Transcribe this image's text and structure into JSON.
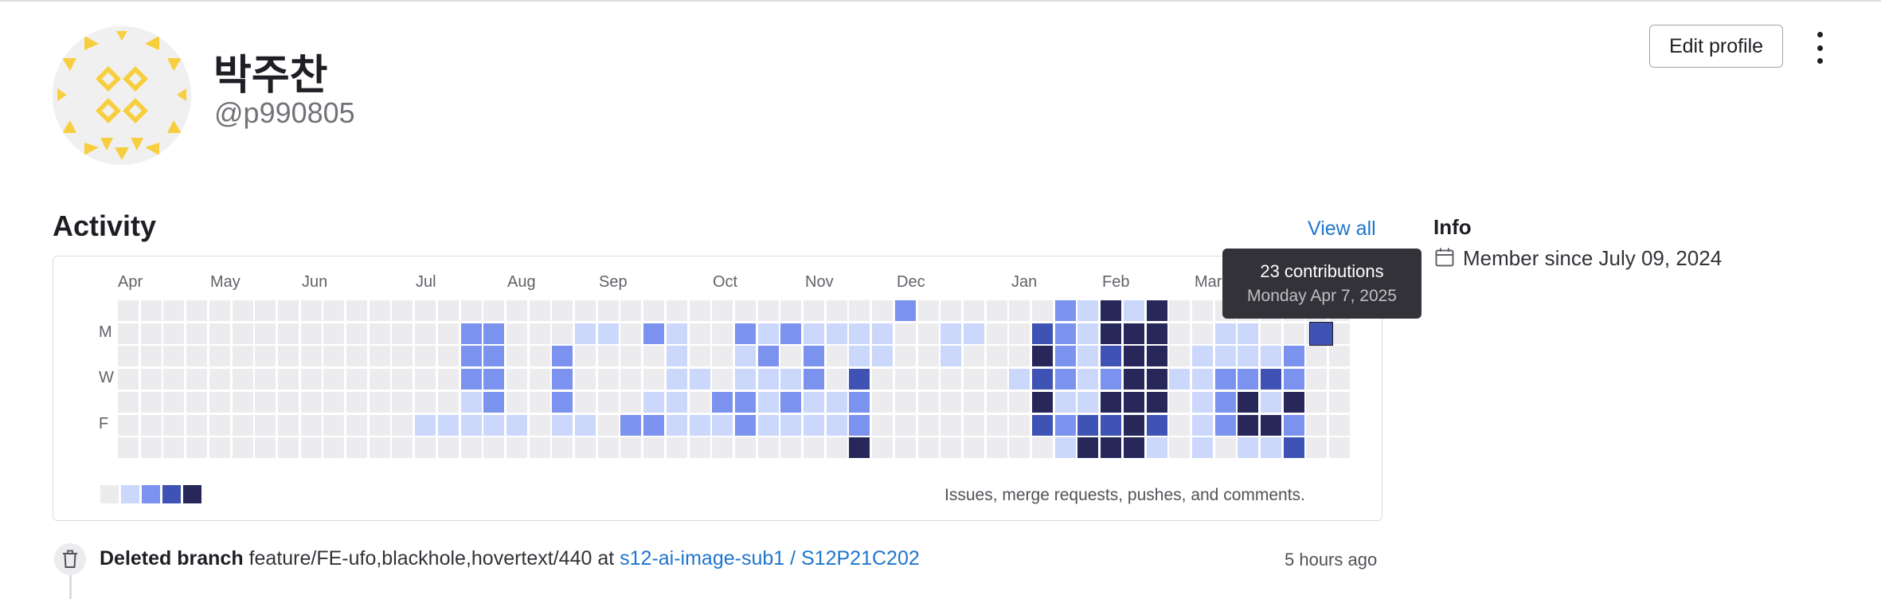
{
  "profile": {
    "display_name": "박주찬",
    "username": "@p990805",
    "edit_label": "Edit profile"
  },
  "activity": {
    "title": "Activity",
    "view_all": "View all",
    "months": [
      "Apr",
      "May",
      "Jun",
      "Jul",
      "Aug",
      "Sep",
      "Oct",
      "Nov",
      "Dec",
      "Jan",
      "Feb",
      "Mar"
    ],
    "day_labels": [
      "M",
      "W",
      "F"
    ],
    "legend_text": "Issues, merge requests, pushes, and comments.",
    "level_colors": [
      "#ececef",
      "#cbd8fc",
      "#7b92ef",
      "#3f53b4",
      "#272859"
    ],
    "tooltip": {
      "count": "23 contributions",
      "date": "Monday Apr 7, 2025"
    },
    "grid": [
      [
        0,
        0,
        0,
        0,
        0,
        0,
        0,
        0,
        0,
        0,
        0,
        0,
        0,
        0,
        0,
        0,
        0,
        0,
        0,
        0,
        0,
        0,
        0,
        0,
        0,
        0,
        0,
        0,
        0,
        0,
        0,
        0,
        0,
        0,
        0,
        0,
        0,
        0,
        0,
        0,
        0,
        0,
        0,
        0,
        0,
        0,
        0,
        0,
        0,
        0,
        0,
        0,
        0,
        0
      ],
      [
        0,
        0,
        0,
        0,
        0,
        0,
        0,
        0,
        0,
        0,
        0,
        0,
        0,
        0,
        0,
        0,
        0,
        0,
        0,
        0,
        0,
        0,
        0,
        0,
        0,
        0,
        0,
        0,
        0,
        0,
        0,
        0,
        0,
        0,
        0,
        0,
        0,
        0,
        0,
        0,
        0,
        0,
        0,
        0,
        0,
        0,
        0,
        0,
        0,
        0,
        0,
        0,
        0,
        0
      ],
      [
        0,
        0,
        0,
        0,
        0,
        0,
        0,
        0,
        0,
        0,
        0,
        0,
        0,
        0,
        0,
        0,
        0,
        0,
        0,
        0,
        0,
        0,
        0,
        0,
        0,
        0,
        0,
        0,
        0,
        0,
        0,
        0,
        0,
        0,
        0,
        0,
        0,
        0,
        0,
        0,
        0,
        0,
        0,
        0,
        0,
        0,
        0,
        0,
        0,
        0,
        0,
        0,
        0,
        0
      ],
      [
        0,
        0,
        0,
        0,
        0,
        0,
        0,
        0,
        0,
        0,
        0,
        0,
        0,
        0,
        0,
        0,
        0,
        0,
        0,
        0,
        0,
        0,
        0,
        0,
        0,
        0,
        0,
        0,
        0,
        0,
        0,
        0,
        0,
        0,
        0,
        0,
        0,
        0,
        0,
        0,
        0,
        0,
        0,
        0,
        0,
        0,
        0,
        0,
        0,
        0,
        0,
        0,
        0,
        0
      ],
      [
        0,
        0,
        0,
        0,
        0,
        0,
        0,
        0,
        0,
        0,
        0,
        0,
        0,
        0,
        0,
        0,
        0,
        0,
        0,
        0,
        0,
        0,
        0,
        0,
        0,
        0,
        0,
        0,
        0,
        0,
        0,
        0,
        0,
        0,
        0,
        0,
        0,
        0,
        0,
        0,
        0,
        0,
        0,
        0,
        0,
        0,
        0,
        0,
        0,
        0,
        0,
        0,
        0,
        0
      ],
      [
        0,
        0,
        0,
        0,
        0,
        0,
        0,
        0,
        0,
        0,
        0,
        0,
        0,
        0,
        0,
        0,
        0,
        0,
        0,
        0,
        0,
        0,
        0,
        0,
        0,
        0,
        0,
        0,
        0,
        0,
        0,
        0,
        0,
        0,
        0,
        0,
        0,
        0,
        0,
        0,
        0,
        0,
        0,
        0,
        0,
        0,
        0,
        0,
        0,
        0,
        0,
        0,
        0,
        0
      ],
      [
        0,
        0,
        0,
        0,
        0,
        0,
        0,
        0,
        0,
        0,
        0,
        0,
        0,
        0,
        0,
        0,
        0,
        0,
        0,
        0,
        0,
        0,
        0,
        0,
        0,
        0,
        0,
        0,
        0,
        0,
        0,
        0,
        0,
        0,
        0,
        0,
        0,
        0,
        0,
        0,
        0,
        0,
        0,
        0,
        0,
        0,
        0,
        0,
        0,
        0,
        0,
        0,
        0,
        0
      ]
    ],
    "highlight_cells": [
      [
        1,
        15,
        2
      ],
      [
        1,
        16,
        2
      ],
      [
        1,
        20,
        1
      ],
      [
        1,
        21,
        1
      ],
      [
        1,
        23,
        2
      ],
      [
        1,
        24,
        1
      ],
      [
        1,
        27,
        2
      ],
      [
        1,
        28,
        1
      ],
      [
        1,
        29,
        2
      ],
      [
        1,
        30,
        1
      ],
      [
        1,
        31,
        1
      ],
      [
        1,
        32,
        1
      ],
      [
        1,
        33,
        1
      ],
      [
        1,
        36,
        1
      ],
      [
        1,
        37,
        1
      ],
      [
        1,
        40,
        3
      ],
      [
        1,
        41,
        2
      ],
      [
        1,
        42,
        1
      ],
      [
        1,
        43,
        4
      ],
      [
        1,
        44,
        4
      ],
      [
        1,
        45,
        4
      ],
      [
        1,
        47,
        0
      ],
      [
        1,
        48,
        1
      ],
      [
        1,
        49,
        1
      ],
      [
        2,
        15,
        2
      ],
      [
        2,
        16,
        2
      ],
      [
        2,
        19,
        2
      ],
      [
        2,
        24,
        1
      ],
      [
        2,
        27,
        1
      ],
      [
        2,
        28,
        2
      ],
      [
        2,
        30,
        2
      ],
      [
        2,
        32,
        1
      ],
      [
        2,
        33,
        1
      ],
      [
        2,
        36,
        1
      ],
      [
        2,
        39,
        0
      ],
      [
        2,
        40,
        4
      ],
      [
        2,
        41,
        2
      ],
      [
        2,
        42,
        1
      ],
      [
        2,
        43,
        3
      ],
      [
        2,
        44,
        4
      ],
      [
        2,
        45,
        4
      ],
      [
        2,
        47,
        1
      ],
      [
        2,
        48,
        1
      ],
      [
        2,
        49,
        1
      ],
      [
        2,
        50,
        1
      ],
      [
        2,
        51,
        2
      ],
      [
        3,
        15,
        2
      ],
      [
        3,
        16,
        2
      ],
      [
        3,
        19,
        2
      ],
      [
        3,
        24,
        1
      ],
      [
        3,
        25,
        1
      ],
      [
        3,
        27,
        1
      ],
      [
        3,
        28,
        1
      ],
      [
        3,
        29,
        1
      ],
      [
        3,
        30,
        2
      ],
      [
        3,
        32,
        3
      ],
      [
        3,
        34,
        0
      ],
      [
        3,
        39,
        1
      ],
      [
        3,
        40,
        3
      ],
      [
        3,
        41,
        2
      ],
      [
        3,
        42,
        1
      ],
      [
        3,
        43,
        2
      ],
      [
        3,
        44,
        4
      ],
      [
        3,
        45,
        4
      ],
      [
        3,
        46,
        1
      ],
      [
        3,
        47,
        1
      ],
      [
        3,
        48,
        2
      ],
      [
        3,
        49,
        2
      ],
      [
        3,
        50,
        3
      ],
      [
        3,
        51,
        2
      ],
      [
        4,
        15,
        1
      ],
      [
        4,
        16,
        2
      ],
      [
        4,
        19,
        2
      ],
      [
        4,
        23,
        1
      ],
      [
        4,
        24,
        1
      ],
      [
        4,
        26,
        2
      ],
      [
        4,
        27,
        2
      ],
      [
        4,
        28,
        1
      ],
      [
        4,
        29,
        2
      ],
      [
        4,
        30,
        1
      ],
      [
        4,
        31,
        1
      ],
      [
        4,
        32,
        2
      ],
      [
        4,
        40,
        4
      ],
      [
        4,
        41,
        1
      ],
      [
        4,
        42,
        1
      ],
      [
        4,
        43,
        4
      ],
      [
        4,
        44,
        4
      ],
      [
        4,
        45,
        4
      ],
      [
        4,
        47,
        1
      ],
      [
        4,
        48,
        2
      ],
      [
        4,
        49,
        4
      ],
      [
        4,
        50,
        1
      ],
      [
        4,
        51,
        4
      ],
      [
        5,
        13,
        1
      ],
      [
        5,
        14,
        1
      ],
      [
        5,
        15,
        1
      ],
      [
        5,
        16,
        1
      ],
      [
        5,
        17,
        1
      ],
      [
        5,
        19,
        1
      ],
      [
        5,
        20,
        1
      ],
      [
        5,
        22,
        2
      ],
      [
        5,
        23,
        2
      ],
      [
        5,
        24,
        1
      ],
      [
        5,
        25,
        1
      ],
      [
        5,
        26,
        1
      ],
      [
        5,
        27,
        2
      ],
      [
        5,
        28,
        1
      ],
      [
        5,
        29,
        1
      ],
      [
        5,
        30,
        1
      ],
      [
        5,
        31,
        1
      ],
      [
        5,
        32,
        2
      ],
      [
        5,
        40,
        3
      ],
      [
        5,
        41,
        2
      ],
      [
        5,
        42,
        3
      ],
      [
        5,
        43,
        3
      ],
      [
        5,
        44,
        4
      ],
      [
        5,
        45,
        3
      ],
      [
        5,
        47,
        1
      ],
      [
        5,
        48,
        2
      ],
      [
        5,
        49,
        4
      ],
      [
        5,
        50,
        4
      ],
      [
        5,
        51,
        2
      ],
      [
        6,
        32,
        4
      ],
      [
        6,
        41,
        1
      ],
      [
        6,
        42,
        4
      ],
      [
        6,
        43,
        4
      ],
      [
        6,
        44,
        4
      ],
      [
        6,
        45,
        1
      ],
      [
        6,
        47,
        1
      ],
      [
        6,
        49,
        1
      ],
      [
        6,
        50,
        1
      ],
      [
        6,
        51,
        3
      ],
      [
        0,
        34,
        2
      ],
      [
        0,
        41,
        2
      ],
      [
        0,
        42,
        1
      ],
      [
        0,
        43,
        4
      ],
      [
        0,
        44,
        1
      ],
      [
        0,
        45,
        4
      ]
    ]
  },
  "info": {
    "title": "Info",
    "member_since": "Member since July 09, 2024"
  },
  "event": {
    "action": "Deleted branch",
    "branch": "feature/FE-ufo,blackhole,hovertext/440",
    "at": "at",
    "project": "s12-ai-image-sub1 / S12P21C202",
    "time": "5 hours ago"
  }
}
